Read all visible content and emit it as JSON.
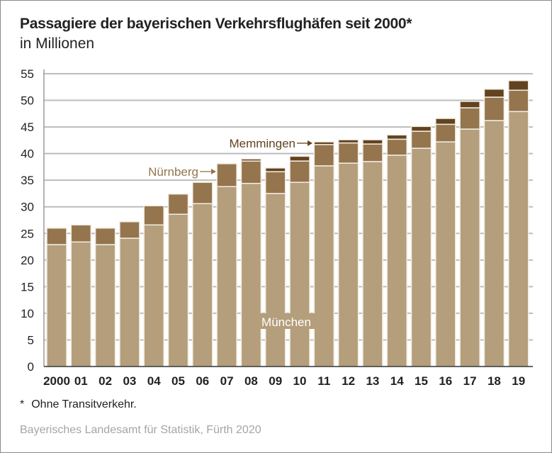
{
  "chart_data": {
    "type": "bar",
    "stacked": true,
    "title": "Passagiere der bayerischen Verkehrsflughäfen seit 2000*",
    "subtitle": "in Millionen",
    "xlabel": "",
    "ylabel": "",
    "ylim": [
      0,
      55
    ],
    "yticks": [
      0,
      5,
      10,
      15,
      20,
      25,
      30,
      35,
      40,
      45,
      50,
      55
    ],
    "grid": true,
    "categories": [
      "2000",
      "01",
      "02",
      "03",
      "04",
      "05",
      "06",
      "07",
      "08",
      "09",
      "10",
      "11",
      "12",
      "13",
      "14",
      "15",
      "16",
      "17",
      "18",
      "19"
    ],
    "series": [
      {
        "name": "München",
        "color": "#b49e7b",
        "values": [
          22.9,
          23.4,
          22.9,
          24.1,
          26.6,
          28.6,
          30.6,
          33.8,
          34.4,
          32.5,
          34.6,
          37.7,
          38.2,
          38.5,
          39.7,
          41.0,
          42.2,
          44.6,
          46.2,
          47.9
        ]
      },
      {
        "name": "Nürnberg",
        "color": "#94754d",
        "values": [
          3.1,
          3.2,
          3.1,
          3.1,
          3.6,
          3.8,
          4.0,
          4.3,
          4.2,
          4.1,
          4.0,
          4.0,
          3.8,
          3.3,
          3.0,
          3.2,
          3.3,
          4.0,
          4.4,
          4.0
        ]
      },
      {
        "name": "Memmingen",
        "color": "#62431f",
        "values": [
          0,
          0,
          0,
          0,
          0,
          0,
          0,
          0,
          0.4,
          0.7,
          0.9,
          0.5,
          0.6,
          0.8,
          0.8,
          0.9,
          1.1,
          1.2,
          1.5,
          1.8
        ]
      }
    ],
    "annotations": {
      "munich": "München",
      "nuremberg": "Nürnberg",
      "memmingen": "Memmingen"
    }
  },
  "footnote": {
    "marker": "*",
    "text": "Ohne Transitverkehr."
  },
  "source": "Bayerisches Landesamt für Statistik, Fürth 2020"
}
